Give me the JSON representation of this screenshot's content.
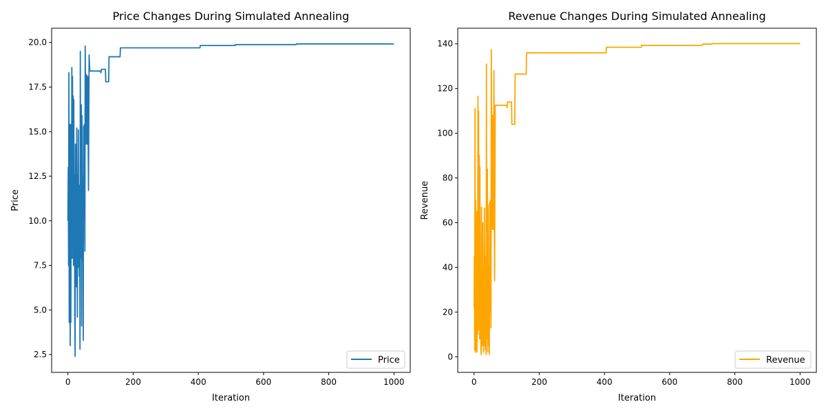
{
  "chart_data": [
    {
      "type": "line",
      "title": "Price Changes During Simulated Annealing",
      "xlabel": "Iteration",
      "ylabel": "Price",
      "xlim": [
        -50,
        1050
      ],
      "ylim": [
        1.5,
        20.8
      ],
      "xticks": [
        0,
        200,
        400,
        600,
        800,
        1000
      ],
      "yticks": [
        2.5,
        5.0,
        7.5,
        10.0,
        12.5,
        15.0,
        17.5,
        20.0
      ],
      "ytick_labels": [
        "2.5",
        "5.0",
        "7.5",
        "10.0",
        "12.5",
        "15.0",
        "17.5",
        "20.0"
      ],
      "grid": false,
      "legend_position": "lower-right",
      "series": [
        {
          "name": "Price",
          "color": "#1f77b4",
          "points": [
            [
              0,
              10.0
            ],
            [
              1,
              13.0
            ],
            [
              2,
              7.5
            ],
            [
              3,
              18.3
            ],
            [
              4,
              4.3
            ],
            [
              5,
              15.4
            ],
            [
              6,
              7.8
            ],
            [
              7,
              3.0
            ],
            [
              8,
              15.4
            ],
            [
              9,
              4.3
            ],
            [
              10,
              13.2
            ],
            [
              11,
              8.6
            ],
            [
              12,
              18.6
            ],
            [
              13,
              7.9
            ],
            [
              14,
              18.1
            ],
            [
              15,
              10.5
            ],
            [
              16,
              17.0
            ],
            [
              17,
              7.5
            ],
            [
              18,
              16.8
            ],
            [
              19,
              10.0
            ],
            [
              20,
              12.6
            ],
            [
              21,
              4.8
            ],
            [
              22,
              2.4
            ],
            [
              23,
              14.3
            ],
            [
              24,
              7.8
            ],
            [
              25,
              12.5
            ],
            [
              26,
              6.3
            ],
            [
              27,
              15.2
            ],
            [
              28,
              10.0
            ],
            [
              29,
              4.6
            ],
            [
              30,
              12.6
            ],
            [
              31,
              8.5
            ],
            [
              32,
              15.1
            ],
            [
              33,
              7.4
            ],
            [
              34,
              12.0
            ],
            [
              35,
              6.9
            ],
            [
              36,
              11.0
            ],
            [
              37,
              2.8
            ],
            [
              38,
              19.5
            ],
            [
              39,
              7.9
            ],
            [
              40,
              13.3
            ],
            [
              41,
              16.5
            ],
            [
              42,
              4.1
            ],
            [
              43,
              15.9
            ],
            [
              44,
              10.5
            ],
            [
              45,
              7.8
            ],
            [
              46,
              12.5
            ],
            [
              47,
              3.3
            ],
            [
              48,
              15.3
            ],
            [
              49,
              10.4
            ],
            [
              50,
              15.4
            ],
            [
              52,
              8.3
            ],
            [
              53,
              19.8
            ],
            [
              55,
              14.3
            ],
            [
              57,
              18.2
            ],
            [
              59,
              14.3
            ],
            [
              61,
              18.1
            ],
            [
              63,
              11.7
            ],
            [
              65,
              19.3
            ],
            [
              67,
              18.4
            ],
            [
              100,
              18.4
            ],
            [
              101,
              18.3
            ],
            [
              103,
              18.5
            ],
            [
              115,
              18.5
            ],
            [
              116,
              17.8
            ],
            [
              125,
              17.8
            ],
            [
              126,
              19.2
            ],
            [
              160,
              19.2
            ],
            [
              161,
              19.7
            ],
            [
              405,
              19.7
            ],
            [
              406,
              19.83
            ],
            [
              513,
              19.83
            ],
            [
              514,
              19.88
            ],
            [
              700,
              19.88
            ],
            [
              701,
              19.92
            ],
            [
              1000,
              19.92
            ]
          ]
        }
      ]
    },
    {
      "type": "line",
      "title": "Revenue Changes During Simulated Annealing",
      "xlabel": "Iteration",
      "ylabel": "Revenue",
      "xlim": [
        -50,
        1050
      ],
      "ylim": [
        -7,
        147
      ],
      "xticks": [
        0,
        200,
        400,
        600,
        800,
        1000
      ],
      "yticks": [
        0,
        20,
        40,
        60,
        80,
        100,
        120,
        140
      ],
      "ytick_labels": [
        "0",
        "20",
        "40",
        "60",
        "80",
        "100",
        "120",
        "140"
      ],
      "grid": false,
      "legend_position": "lower-right",
      "series": [
        {
          "name": "Revenue",
          "color": "#ffa500",
          "points": [
            [
              0,
              22.0
            ],
            [
              1,
              45.0
            ],
            [
              2,
              3.0
            ],
            [
              3,
              111.0
            ],
            [
              4,
              2.0
            ],
            [
              5,
              70.0
            ],
            [
              6,
              15.0
            ],
            [
              7,
              3.0
            ],
            [
              8,
              65.0
            ],
            [
              9,
              2.0
            ],
            [
              10,
              45.0
            ],
            [
              11,
              10.0
            ],
            [
              12,
              116.5
            ],
            [
              13,
              12.0
            ],
            [
              14,
              110.0
            ],
            [
              15,
              20.0
            ],
            [
              16,
              90.0
            ],
            [
              17,
              8.0
            ],
            [
              18,
              85.0
            ],
            [
              19,
              15.0
            ],
            [
              20,
              40.0
            ],
            [
              21,
              3.0
            ],
            [
              22,
              1.0
            ],
            [
              23,
              67.0
            ],
            [
              24,
              10.0
            ],
            [
              25,
              50.0
            ],
            [
              26,
              5.0
            ],
            [
              27,
              60.0
            ],
            [
              28,
              15.0
            ],
            [
              29,
              2.0
            ],
            [
              30,
              40.0
            ],
            [
              31,
              10.0
            ],
            [
              32,
              66.5
            ],
            [
              33,
              5.0
            ],
            [
              34,
              45.0
            ],
            [
              35,
              3.0
            ],
            [
              36,
              35.0
            ],
            [
              37,
              1.0
            ],
            [
              38,
              131.0
            ],
            [
              39,
              8.0
            ],
            [
              40,
              60.0
            ],
            [
              41,
              84.0
            ],
            [
              42,
              2.0
            ],
            [
              43,
              68.0
            ],
            [
              44,
              15.0
            ],
            [
              45,
              5.0
            ],
            [
              46,
              40.0
            ],
            [
              47,
              1.0
            ],
            [
              48,
              69.0
            ],
            [
              49,
              20.0
            ],
            [
              50,
              70.0
            ],
            [
              52,
              13.0
            ],
            [
              53,
              137.5
            ],
            [
              55,
              57.0
            ],
            [
              57,
              108.0
            ],
            [
              59,
              57.0
            ],
            [
              61,
              128.0
            ],
            [
              63,
              34.0
            ],
            [
              65,
              112.5
            ],
            [
              100,
              112.5
            ],
            [
              101,
              111.5
            ],
            [
              103,
              114.0
            ],
            [
              115,
              114.0
            ],
            [
              116,
              104.0
            ],
            [
              125,
              104.0
            ],
            [
              126,
              126.5
            ],
            [
              160,
              126.5
            ],
            [
              161,
              136.0
            ],
            [
              405,
              136.0
            ],
            [
              406,
              138.5
            ],
            [
              513,
              138.5
            ],
            [
              514,
              139.3
            ],
            [
              700,
              139.3
            ],
            [
              701,
              139.9
            ],
            [
              730,
              139.9
            ],
            [
              731,
              140.1
            ],
            [
              1000,
              140.1
            ]
          ]
        }
      ]
    }
  ]
}
